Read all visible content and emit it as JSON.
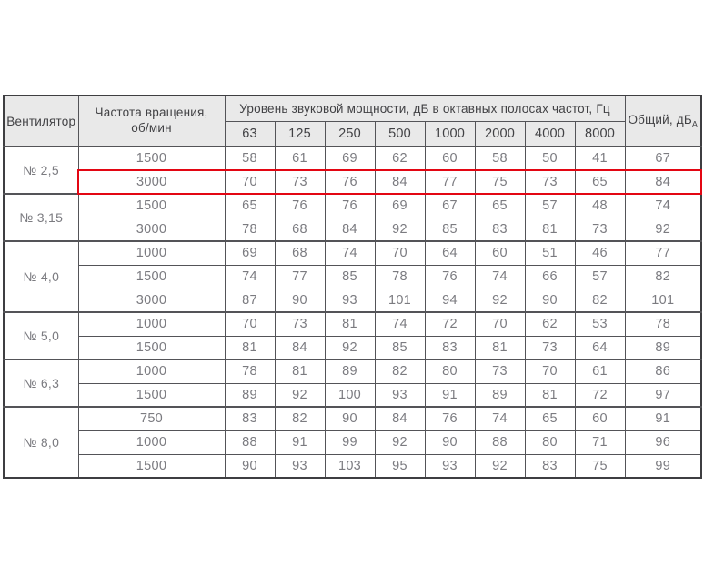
{
  "colors": {
    "accent_red": "#e30613",
    "header_bg": "#e9e9e9",
    "border_gray": "#545458",
    "text_gray": "#7b7b80",
    "text_dark": "#414144"
  },
  "table": {
    "col_fan": "Вентилятор",
    "col_speed_line1": "Частота вращения,",
    "col_speed_line2": "об/мин",
    "col_levels": "Уровень звуковой мощности, дБ в октавных полосах частот, Гц",
    "col_total": "Общий, дБ",
    "col_total_sub": "A",
    "frequencies": [
      "63",
      "125",
      "250",
      "500",
      "1000",
      "2000",
      "4000",
      "8000"
    ],
    "groups": [
      {
        "fan": "№ 2,5",
        "rows": [
          {
            "rpm": "1500",
            "values": [
              58,
              61,
              69,
              62,
              60,
              58,
              50,
              41
            ],
            "total": 67
          },
          {
            "rpm": "3000",
            "values": [
              70,
              73,
              76,
              84,
              77,
              75,
              73,
              65
            ],
            "total": 84,
            "highlight": true
          }
        ]
      },
      {
        "fan": "№ 3,15",
        "rows": [
          {
            "rpm": "1500",
            "values": [
              65,
              76,
              76,
              69,
              67,
              65,
              57,
              48
            ],
            "total": 74
          },
          {
            "rpm": "3000",
            "values": [
              78,
              68,
              84,
              92,
              85,
              83,
              81,
              73
            ],
            "total": 92
          }
        ]
      },
      {
        "fan": "№ 4,0",
        "rows": [
          {
            "rpm": "1000",
            "values": [
              69,
              68,
              74,
              70,
              64,
              60,
              51,
              46
            ],
            "total": 77
          },
          {
            "rpm": "1500",
            "values": [
              74,
              77,
              85,
              78,
              76,
              74,
              66,
              57
            ],
            "total": 82
          },
          {
            "rpm": "3000",
            "values": [
              87,
              90,
              93,
              101,
              94,
              92,
              90,
              82
            ],
            "total": 101
          }
        ]
      },
      {
        "fan": "№ 5,0",
        "rows": [
          {
            "rpm": "1000",
            "values": [
              70,
              73,
              81,
              74,
              72,
              70,
              62,
              53
            ],
            "total": 78
          },
          {
            "rpm": "1500",
            "values": [
              81,
              84,
              92,
              85,
              83,
              81,
              73,
              64
            ],
            "total": 89
          }
        ]
      },
      {
        "fan": "№ 6,3",
        "rows": [
          {
            "rpm": "1000",
            "values": [
              78,
              81,
              89,
              82,
              80,
              73,
              70,
              61
            ],
            "total": 86
          },
          {
            "rpm": "1500",
            "values": [
              89,
              92,
              100,
              93,
              91,
              89,
              81,
              72
            ],
            "total": 97
          }
        ]
      },
      {
        "fan": "№ 8,0",
        "rows": [
          {
            "rpm": "750",
            "values": [
              83,
              82,
              90,
              84,
              76,
              74,
              65,
              60
            ],
            "total": 91
          },
          {
            "rpm": "1000",
            "values": [
              88,
              91,
              99,
              92,
              90,
              88,
              80,
              71
            ],
            "total": 96
          },
          {
            "rpm": "1500",
            "values": [
              90,
              93,
              103,
              95,
              93,
              92,
              83,
              75
            ],
            "total": 99
          }
        ]
      }
    ]
  }
}
